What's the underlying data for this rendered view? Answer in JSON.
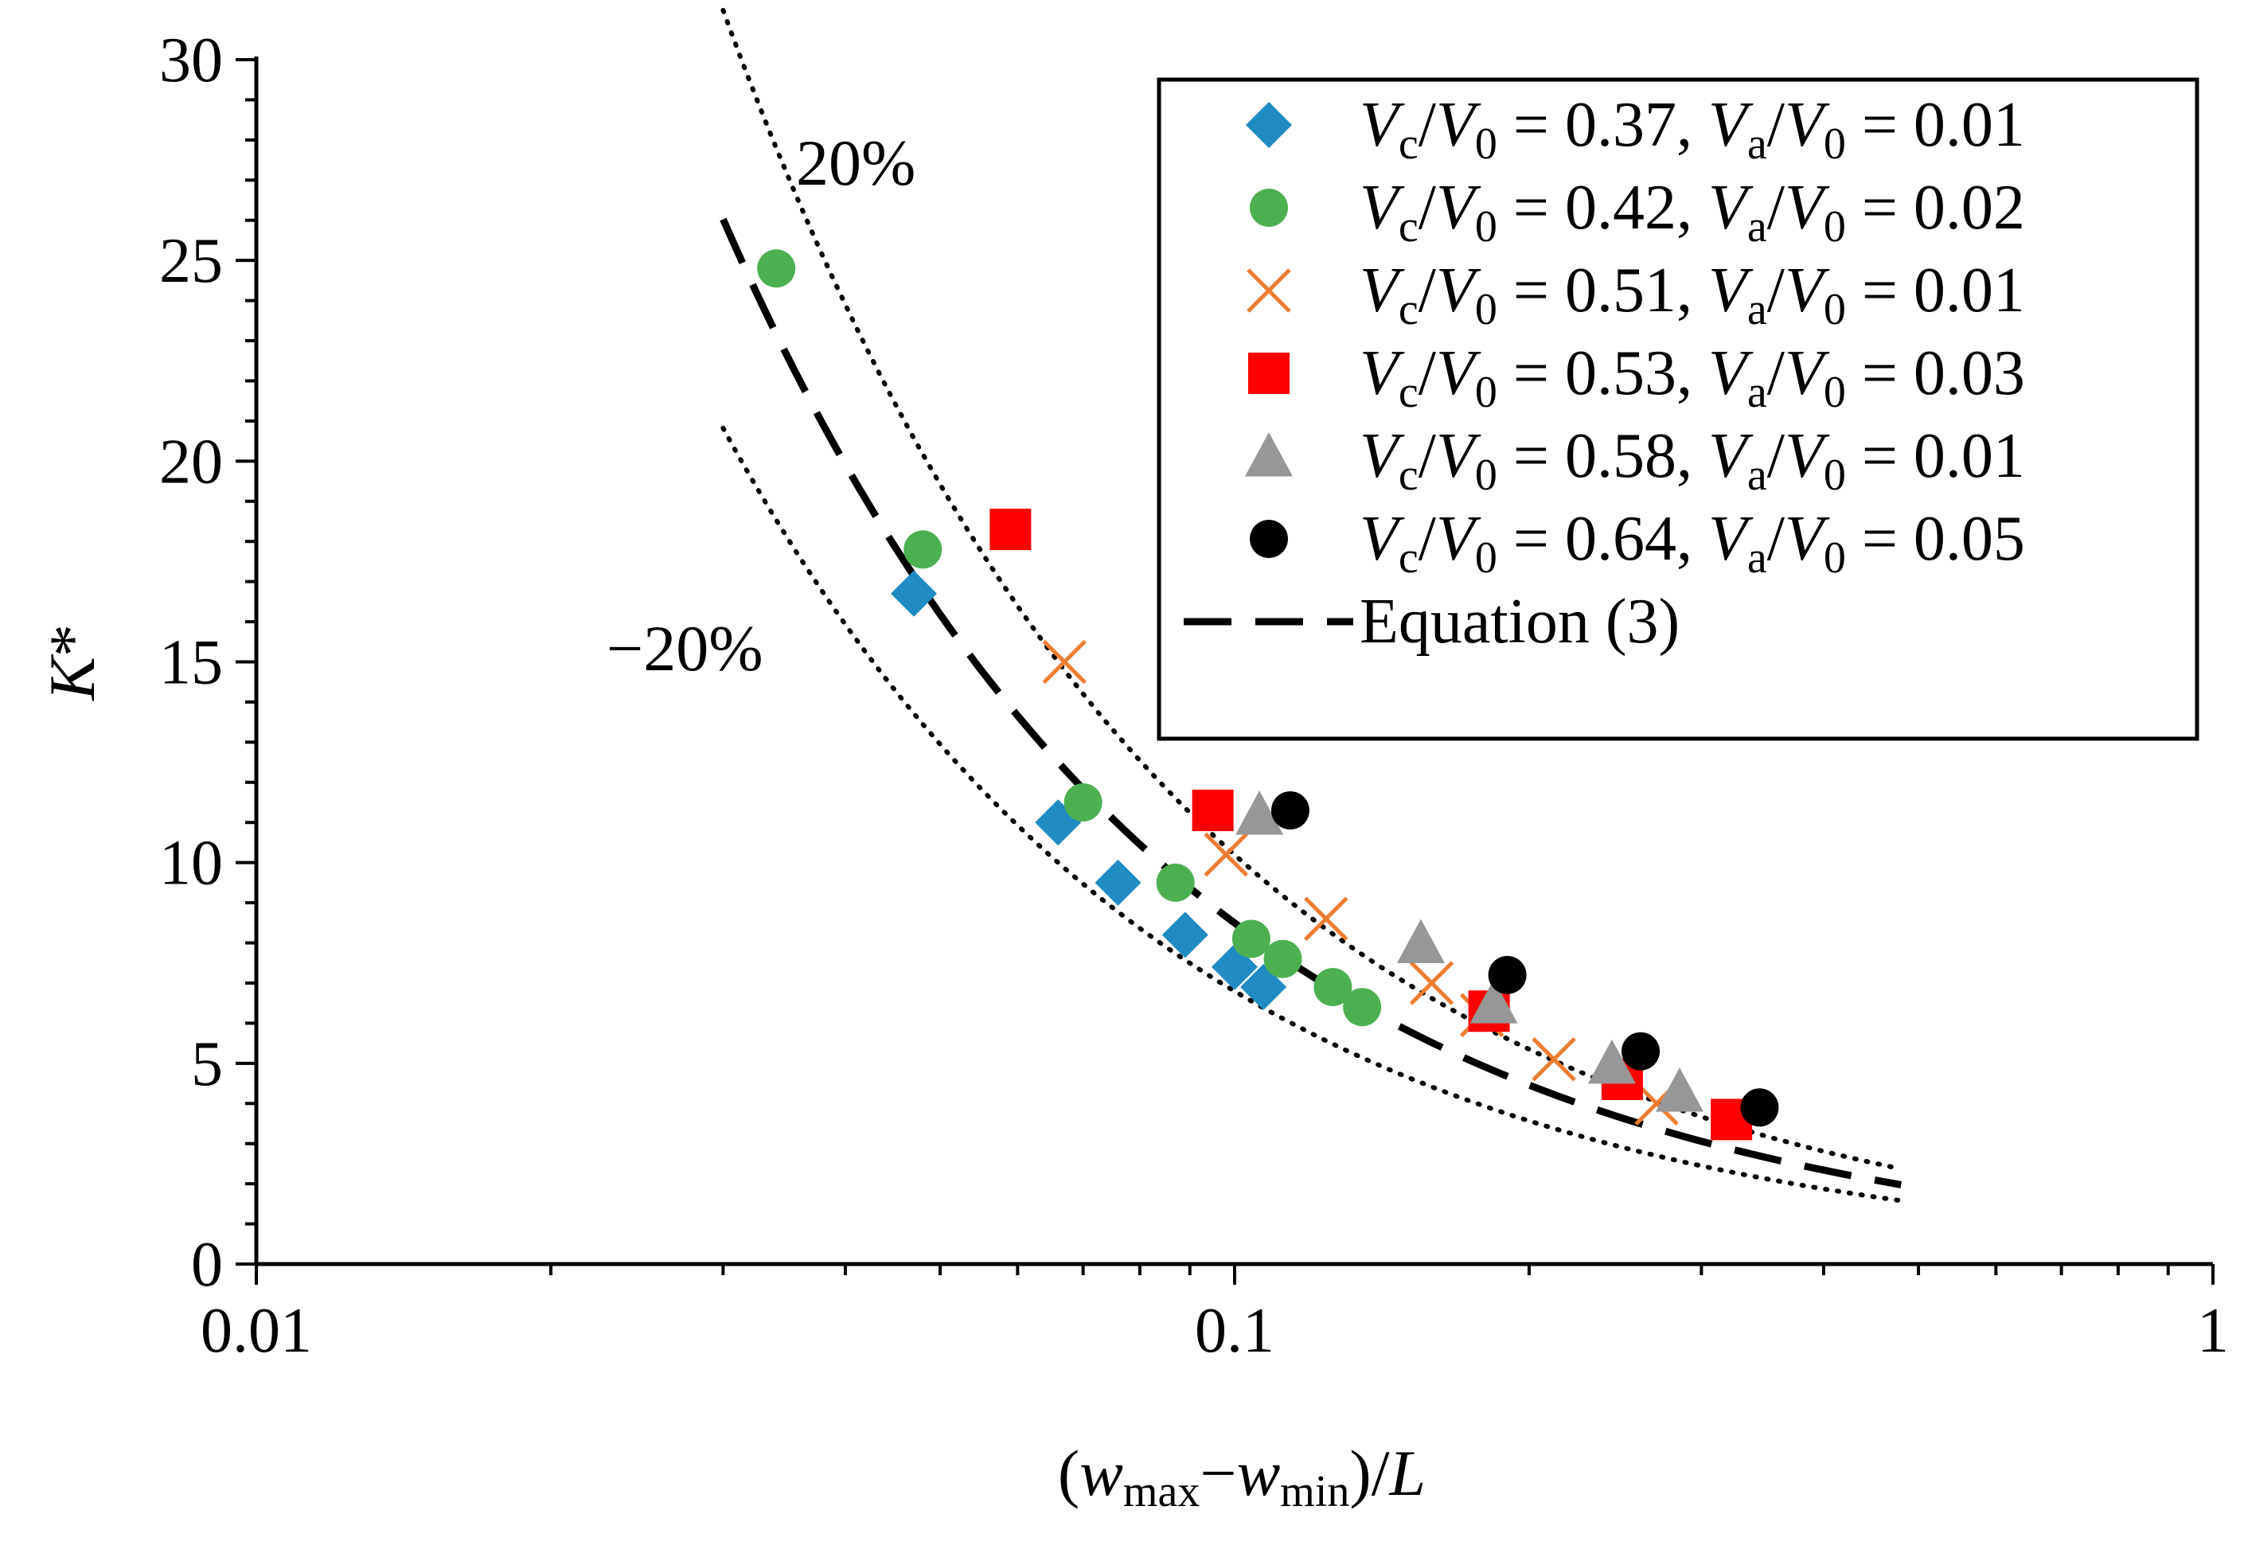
{
  "chart_data": {
    "type": "scatter",
    "x_scale": "log",
    "xlim": [
      0.01,
      1
    ],
    "ylim": [
      0,
      30
    ],
    "x_ticks": [
      {
        "value": 0.01,
        "label": "0.01"
      },
      {
        "value": 0.1,
        "label": "0.1"
      },
      {
        "value": 1,
        "label": "1"
      }
    ],
    "y_ticks": [
      {
        "value": 0,
        "label": "0"
      },
      {
        "value": 5,
        "label": "5"
      },
      {
        "value": 10,
        "label": "10"
      },
      {
        "value": 15,
        "label": "15"
      },
      {
        "value": 20,
        "label": "20"
      },
      {
        "value": 25,
        "label": "25"
      },
      {
        "value": 30,
        "label": "30"
      }
    ],
    "xlabel": {
      "open": "(",
      "w1": "w",
      "sub1": "max",
      "minus": "−",
      "w2": "w",
      "sub2": "min",
      "close": ")/",
      "L": "L"
    },
    "ylabel": {
      "K": "K",
      "star": "*"
    },
    "legend_position": "top-right",
    "series": [
      {
        "name": "Vc/V0 = 0.37, Va/V0 = 0.01",
        "legend": {
          "vc_value": "0.37",
          "va_value": "0.01"
        },
        "marker": "diamond",
        "color": "#1F8BC2",
        "points": [
          [
            0.047,
            16.7
          ],
          [
            0.066,
            11.0
          ],
          [
            0.076,
            9.5
          ],
          [
            0.089,
            8.2
          ],
          [
            0.1,
            7.4
          ],
          [
            0.107,
            6.9
          ]
        ]
      },
      {
        "name": "Vc/V0 = 0.42, Va/V0 = 0.02",
        "legend": {
          "vc_value": "0.42",
          "va_value": "0.02"
        },
        "marker": "circle",
        "color": "#4CB050",
        "points": [
          [
            0.034,
            24.8
          ],
          [
            0.048,
            17.8
          ],
          [
            0.07,
            11.5
          ],
          [
            0.087,
            9.5
          ],
          [
            0.104,
            8.1
          ],
          [
            0.112,
            7.6
          ],
          [
            0.126,
            6.9
          ],
          [
            0.135,
            6.4
          ]
        ]
      },
      {
        "name": "Vc/V0 = 0.51, Va/V0 = 0.01",
        "legend": {
          "vc_value": "0.51",
          "va_value": "0.01"
        },
        "marker": "x",
        "color": "#ED7D31",
        "points": [
          [
            0.067,
            15.0
          ],
          [
            0.098,
            10.2
          ],
          [
            0.124,
            8.6
          ],
          [
            0.159,
            7.0
          ],
          [
            0.179,
            6.2
          ],
          [
            0.212,
            5.1
          ],
          [
            0.27,
            4.0
          ]
        ]
      },
      {
        "name": "Vc/V0 = 0.53, Va/V0 = 0.03",
        "legend": {
          "vc_value": "0.53",
          "va_value": "0.03"
        },
        "marker": "square",
        "color": "#FF0000",
        "points": [
          [
            0.059,
            18.3
          ],
          [
            0.095,
            11.3
          ],
          [
            0.182,
            6.3
          ],
          [
            0.249,
            4.6
          ],
          [
            0.322,
            3.6
          ]
        ]
      },
      {
        "name": "Vc/V0 = 0.58, Va/V0 = 0.01",
        "legend": {
          "vc_value": "0.58",
          "va_value": "0.01"
        },
        "marker": "triangle",
        "color": "#979797",
        "points": [
          [
            0.106,
            11.2
          ],
          [
            0.155,
            8.0
          ],
          [
            0.184,
            6.5
          ],
          [
            0.243,
            5.0
          ],
          [
            0.285,
            4.3
          ]
        ]
      },
      {
        "name": "Vc/V0 = 0.64, Va/V0 = 0.05",
        "legend": {
          "vc_value": "0.64",
          "va_value": "0.05"
        },
        "marker": "circle",
        "color": "#000000",
        "points": [
          [
            0.114,
            11.3
          ],
          [
            0.19,
            7.2
          ],
          [
            0.26,
            5.3
          ],
          [
            0.344,
            3.9
          ]
        ]
      }
    ],
    "equation_curve": {
      "name": "Equation (3)",
      "style": "dashed",
      "color": "#000000",
      "x_range": [
        0.03,
        0.48
      ],
      "coef": 0.998,
      "exponent": -0.93
    },
    "bands": [
      {
        "label": "20%",
        "factor": 1.2
      },
      {
        "label": "−20%",
        "factor": 0.8
      }
    ],
    "legend_text": {
      "eq": " = ",
      "sep": ", ",
      "V": "V",
      "c": "c",
      "a": "a",
      "zero": "0",
      "slash": "/"
    }
  }
}
